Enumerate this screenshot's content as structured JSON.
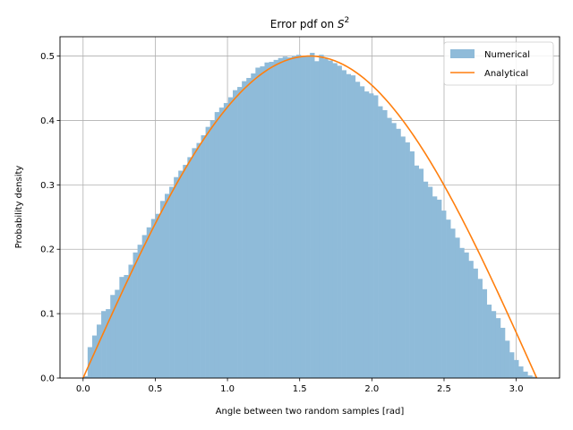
{
  "chart_data": {
    "type": "bar",
    "title_main": "Error pdf on ",
    "title_math_symbol": "S",
    "title_math_exp": "2",
    "xlabel": "Angle between two random samples [rad]",
    "ylabel": "Probability density",
    "xlim": [
      -0.16,
      3.3
    ],
    "ylim": [
      0,
      0.53
    ],
    "grid": true,
    "legend_position": "top-right",
    "x_ticks": [
      0.0,
      0.5,
      1.0,
      1.5,
      2.0,
      2.5,
      3.0
    ],
    "x_tick_labels": [
      "0.0",
      "0.5",
      "1.0",
      "1.5",
      "2.0",
      "2.5",
      "3.0"
    ],
    "y_ticks": [
      0.0,
      0.1,
      0.2,
      0.3,
      0.4,
      0.5
    ],
    "y_tick_labels": [
      "0.0",
      "0.1",
      "0.2",
      "0.3",
      "0.4",
      "0.5"
    ],
    "histogram": {
      "name": "Numerical",
      "color": "#8fbbd9",
      "bin_start": 0.0,
      "bin_width": 0.031416,
      "values": [
        0.003,
        0.048,
        0.066,
        0.083,
        0.104,
        0.107,
        0.129,
        0.137,
        0.157,
        0.16,
        0.176,
        0.195,
        0.207,
        0.222,
        0.234,
        0.247,
        0.255,
        0.275,
        0.286,
        0.297,
        0.312,
        0.322,
        0.331,
        0.343,
        0.357,
        0.365,
        0.377,
        0.39,
        0.4,
        0.413,
        0.42,
        0.427,
        0.436,
        0.447,
        0.452,
        0.461,
        0.466,
        0.473,
        0.482,
        0.484,
        0.49,
        0.491,
        0.494,
        0.497,
        0.499,
        0.498,
        0.5,
        0.502,
        0.499,
        0.5,
        0.505,
        0.492,
        0.502,
        0.496,
        0.493,
        0.489,
        0.485,
        0.478,
        0.472,
        0.47,
        0.46,
        0.453,
        0.445,
        0.442,
        0.439,
        0.422,
        0.416,
        0.404,
        0.396,
        0.387,
        0.375,
        0.366,
        0.352,
        0.33,
        0.325,
        0.305,
        0.297,
        0.282,
        0.277,
        0.26,
        0.246,
        0.232,
        0.218,
        0.202,
        0.195,
        0.182,
        0.17,
        0.154,
        0.138,
        0.114,
        0.104,
        0.093,
        0.078,
        0.058,
        0.04,
        0.028,
        0.018,
        0.01,
        0.004,
        0.002
      ]
    },
    "series": [
      {
        "name": "Analytical",
        "color": "#ff7f0e",
        "function": "0.5*sin(x)",
        "x_range": [
          0,
          3.14159
        ]
      }
    ]
  }
}
